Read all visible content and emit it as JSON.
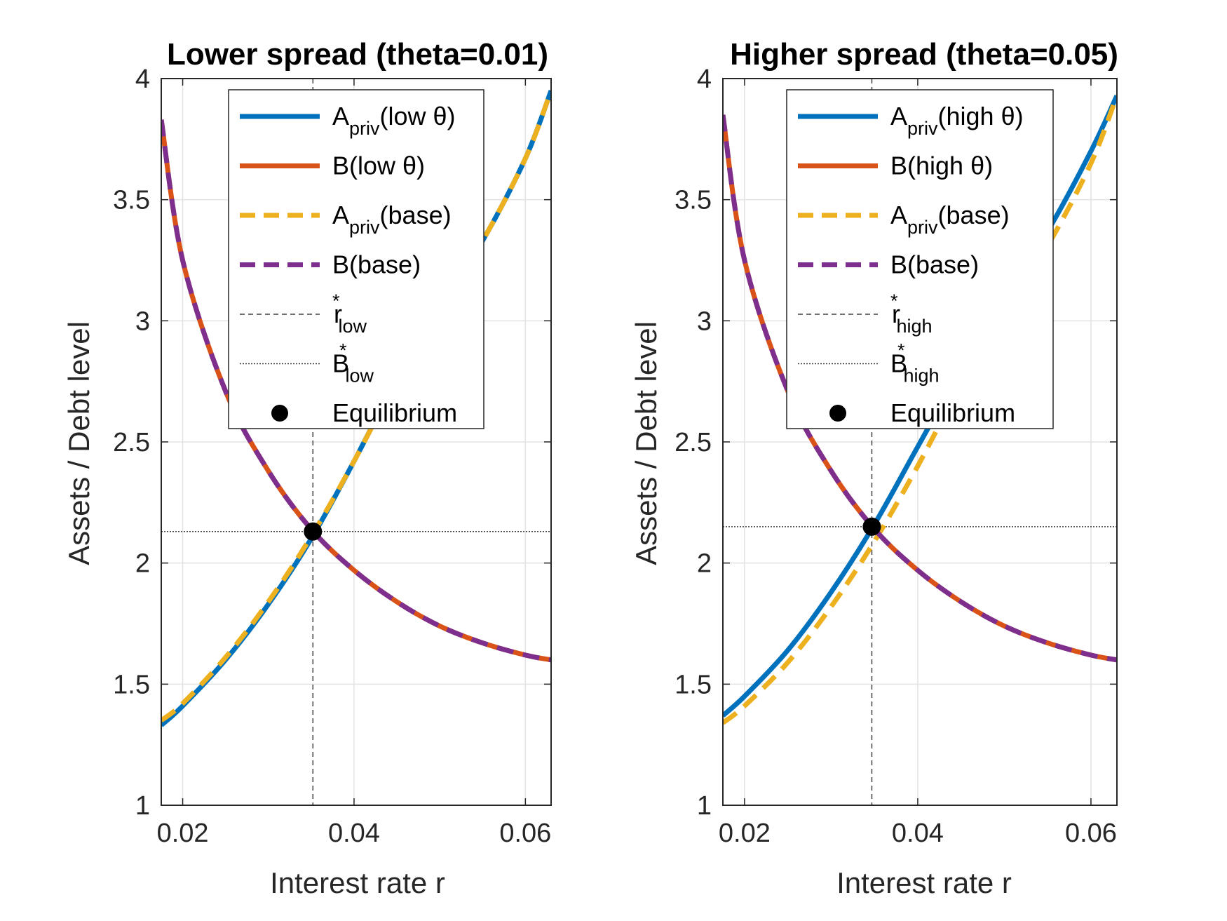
{
  "chart_data": [
    {
      "type": "line",
      "title": "Lower spread (theta=0.01)",
      "xlabel": "Interest rate r",
      "ylabel": "Assets / Debt level",
      "xlim": [
        0.0175,
        0.063
      ],
      "ylim": [
        1,
        4
      ],
      "xticks": [
        "0.02",
        "0.04",
        "0.06"
      ],
      "yticks": [
        "1",
        "1.5",
        "2",
        "2.5",
        "3",
        "3.5",
        "4"
      ],
      "grid": true,
      "legend_position": "top-center",
      "series": [
        {
          "name": "A_priv(low θ)",
          "legend_main": "A",
          "legend_sub": "priv",
          "legend_rest": "(low θ)",
          "color": "#0072BD",
          "style": "solid",
          "x": [
            0.0175,
            0.02,
            0.025,
            0.03,
            0.035,
            0.04,
            0.045,
            0.05,
            0.055,
            0.06,
            0.063
          ],
          "y": [
            1.33,
            1.41,
            1.6,
            1.83,
            2.1,
            2.42,
            2.76,
            3.06,
            3.33,
            3.67,
            3.95
          ]
        },
        {
          "name": "B(low θ)",
          "legend_main": "B",
          "legend_sub": "",
          "legend_rest": "(low θ)",
          "color": "#D95319",
          "style": "solid",
          "x": [
            0.0175,
            0.02,
            0.025,
            0.03,
            0.035,
            0.04,
            0.045,
            0.05,
            0.055,
            0.06,
            0.063
          ],
          "y": [
            3.83,
            3.25,
            2.71,
            2.38,
            2.14,
            1.97,
            1.84,
            1.74,
            1.67,
            1.62,
            1.6
          ]
        },
        {
          "name": "A_priv(base)",
          "legend_main": "A",
          "legend_sub": "priv",
          "legend_rest": "(base)",
          "color": "#EDB120",
          "style": "dashed",
          "x": [
            0.0175,
            0.02,
            0.025,
            0.03,
            0.035,
            0.04,
            0.045,
            0.05,
            0.055,
            0.06,
            0.063
          ],
          "y": [
            1.35,
            1.42,
            1.61,
            1.84,
            2.11,
            2.42,
            2.76,
            3.06,
            3.33,
            3.67,
            3.95
          ]
        },
        {
          "name": "B(base)",
          "legend_main": "B",
          "legend_sub": "",
          "legend_rest": "(base)",
          "color": "#7E2F8E",
          "style": "dashed",
          "x": [
            0.0175,
            0.02,
            0.025,
            0.03,
            0.035,
            0.04,
            0.045,
            0.05,
            0.055,
            0.06,
            0.063
          ],
          "y": [
            3.83,
            3.25,
            2.71,
            2.38,
            2.14,
            1.97,
            1.84,
            1.74,
            1.67,
            1.62,
            1.6
          ]
        }
      ],
      "reference_lines": [
        {
          "name": "r*_low",
          "legend_main": "r",
          "legend_sub": "low",
          "orientation": "vertical",
          "value": 0.0352,
          "style": "dashed"
        },
        {
          "name": "B*_low",
          "legend_main": "B",
          "legend_sub": "low",
          "orientation": "horizontal",
          "value": 2.13,
          "style": "dotted"
        }
      ],
      "equilibrium": {
        "label": "Equilibrium",
        "x": 0.0352,
        "y": 2.13
      }
    },
    {
      "type": "line",
      "title": "Higher spread (theta=0.05)",
      "xlabel": "Interest rate r",
      "ylabel": "Assets / Debt level",
      "xlim": [
        0.0175,
        0.063
      ],
      "ylim": [
        1,
        4
      ],
      "xticks": [
        "0.02",
        "0.04",
        "0.06"
      ],
      "yticks": [
        "1",
        "1.5",
        "2",
        "2.5",
        "3",
        "3.5",
        "4"
      ],
      "grid": true,
      "legend_position": "top-center",
      "series": [
        {
          "name": "A_priv(high θ)",
          "legend_main": "A",
          "legend_sub": "priv",
          "legend_rest": "(high θ)",
          "color": "#0072BD",
          "style": "solid",
          "x": [
            0.0175,
            0.02,
            0.025,
            0.03,
            0.035,
            0.04,
            0.045,
            0.05,
            0.055,
            0.06,
            0.063
          ],
          "y": [
            1.37,
            1.45,
            1.64,
            1.88,
            2.16,
            2.48,
            2.8,
            3.1,
            3.37,
            3.7,
            3.93
          ]
        },
        {
          "name": "B(high θ)",
          "legend_main": "B",
          "legend_sub": "",
          "legend_rest": "(high θ)",
          "color": "#D95319",
          "style": "solid",
          "x": [
            0.0175,
            0.02,
            0.025,
            0.03,
            0.035,
            0.04,
            0.045,
            0.05,
            0.055,
            0.06,
            0.063
          ],
          "y": [
            3.85,
            3.25,
            2.71,
            2.38,
            2.14,
            1.97,
            1.84,
            1.74,
            1.67,
            1.62,
            1.6
          ]
        },
        {
          "name": "A_priv(base)",
          "legend_main": "A",
          "legend_sub": "priv",
          "legend_rest": "(base)",
          "color": "#EDB120",
          "style": "dashed",
          "x": [
            0.0175,
            0.02,
            0.025,
            0.03,
            0.035,
            0.04,
            0.045,
            0.05,
            0.055,
            0.06,
            0.063
          ],
          "y": [
            1.34,
            1.41,
            1.59,
            1.82,
            2.09,
            2.4,
            2.74,
            3.04,
            3.31,
            3.65,
            3.93
          ]
        },
        {
          "name": "B(base)",
          "legend_main": "B",
          "legend_sub": "",
          "legend_rest": "(base)",
          "color": "#7E2F8E",
          "style": "dashed",
          "x": [
            0.0175,
            0.02,
            0.025,
            0.03,
            0.035,
            0.04,
            0.045,
            0.05,
            0.055,
            0.06,
            0.063
          ],
          "y": [
            3.85,
            3.25,
            2.71,
            2.38,
            2.14,
            1.97,
            1.84,
            1.74,
            1.67,
            1.62,
            1.6
          ]
        }
      ],
      "reference_lines": [
        {
          "name": "r*_high",
          "legend_main": "r",
          "legend_sub": "high",
          "orientation": "vertical",
          "value": 0.0347,
          "style": "dashed"
        },
        {
          "name": "B*_high",
          "legend_main": "B",
          "legend_sub": "high",
          "orientation": "horizontal",
          "value": 2.15,
          "style": "dotted"
        }
      ],
      "equilibrium": {
        "label": "Equilibrium",
        "x": 0.0347,
        "y": 2.15
      }
    }
  ]
}
